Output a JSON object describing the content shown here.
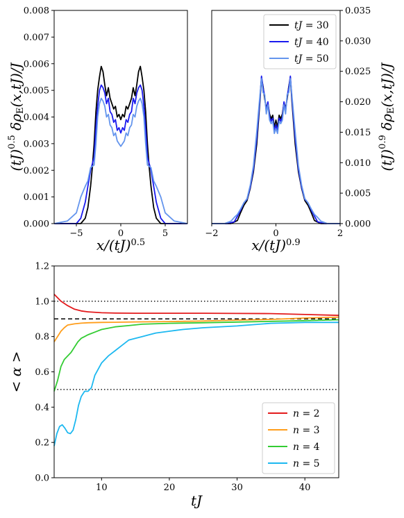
{
  "chart_data": [
    {
      "type": "line",
      "xlabel": "x/(tJ)^0.5",
      "ylabel": "(tJ)^0.5 δρ_E(x,tJ)/J",
      "xlim": [
        -7.5,
        7.5
      ],
      "ylim": [
        0,
        0.008
      ],
      "xticks": [
        "−5",
        "0",
        "5"
      ],
      "xtick_values": [
        -5,
        0,
        5
      ],
      "yticks": [
        "0.000",
        "0.001",
        "0.002",
        "0.003",
        "0.004",
        "0.005",
        "0.006",
        "0.007",
        "0.008"
      ],
      "ytick_values": [
        0,
        0.001,
        0.002,
        0.003,
        0.004,
        0.005,
        0.006,
        0.007,
        0.008
      ],
      "legend": false,
      "series": [
        {
          "color": "#000000",
          "x": [
            -7.5,
            -4.5,
            -4.0,
            -3.7,
            -3.4,
            -3.2,
            -3.0,
            -2.8,
            -2.6,
            -2.4,
            -2.2,
            -2.0,
            -1.8,
            -1.6,
            -1.4,
            -1.2,
            -1.0,
            -0.8,
            -0.6,
            -0.4,
            -0.2,
            0,
            0.2,
            0.4,
            0.6,
            0.8,
            1.0,
            1.2,
            1.4,
            1.6,
            1.8,
            2.0,
            2.2,
            2.4,
            2.6,
            2.8,
            3.0,
            3.2,
            3.4,
            3.7,
            4.0,
            4.5,
            7.5
          ],
          "y": [
            0,
            0,
            0.0002,
            0.0006,
            0.0014,
            0.0021,
            0.003,
            0.0042,
            0.005,
            0.0055,
            0.0059,
            0.0057,
            0.0052,
            0.0048,
            0.0051,
            0.0047,
            0.0045,
            0.0043,
            0.0044,
            0.004,
            0.0041,
            0.0039,
            0.0041,
            0.004,
            0.0044,
            0.0043,
            0.0045,
            0.0047,
            0.0051,
            0.0048,
            0.0052,
            0.0057,
            0.0059,
            0.0055,
            0.005,
            0.0042,
            0.003,
            0.0021,
            0.0014,
            0.0006,
            0.0002,
            0,
            0
          ]
        },
        {
          "color": "#1a1aee",
          "x": [
            -7.5,
            -5.0,
            -4.5,
            -4.0,
            -3.7,
            -3.4,
            -3.0,
            -2.8,
            -2.6,
            -2.4,
            -2.2,
            -2.0,
            -1.8,
            -1.6,
            -1.4,
            -1.2,
            -1.0,
            -0.8,
            -0.6,
            -0.4,
            -0.2,
            0,
            0.2,
            0.4,
            0.6,
            0.8,
            1.0,
            1.2,
            1.4,
            1.6,
            1.8,
            2.0,
            2.2,
            2.4,
            2.6,
            2.8,
            3.0,
            3.4,
            3.7,
            4.0,
            4.5,
            5.0,
            7.5
          ],
          "y": [
            0,
            0,
            0.0002,
            0.0008,
            0.0014,
            0.002,
            0.0025,
            0.0036,
            0.0044,
            0.005,
            0.0052,
            0.0051,
            0.0049,
            0.0045,
            0.0047,
            0.0042,
            0.0041,
            0.0038,
            0.0039,
            0.0035,
            0.0036,
            0.0034,
            0.0036,
            0.0035,
            0.0039,
            0.0038,
            0.0041,
            0.0042,
            0.0047,
            0.0045,
            0.0049,
            0.0051,
            0.0052,
            0.005,
            0.0044,
            0.0036,
            0.0025,
            0.002,
            0.0014,
            0.0008,
            0.0002,
            0,
            0
          ]
        },
        {
          "color": "#6495ed",
          "x": [
            -7.5,
            -6.0,
            -5.0,
            -4.5,
            -4.0,
            -3.7,
            -3.4,
            -3.0,
            -2.8,
            -2.6,
            -2.4,
            -2.2,
            -2.0,
            -1.8,
            -1.6,
            -1.4,
            -1.2,
            -1.0,
            -0.8,
            -0.6,
            -0.4,
            -0.2,
            0,
            0.2,
            0.4,
            0.6,
            0.8,
            1.0,
            1.2,
            1.4,
            1.6,
            1.8,
            2.0,
            2.2,
            2.4,
            2.6,
            2.8,
            3.0,
            3.4,
            3.7,
            4.0,
            4.5,
            5.0,
            6.0,
            7.5
          ],
          "y": [
            0,
            0.0001,
            0.0004,
            0.001,
            0.0014,
            0.0016,
            0.0021,
            0.0022,
            0.003,
            0.004,
            0.0045,
            0.0047,
            0.0046,
            0.0044,
            0.004,
            0.0041,
            0.0037,
            0.0036,
            0.0033,
            0.0034,
            0.0031,
            0.003,
            0.0029,
            0.003,
            0.0031,
            0.0034,
            0.0033,
            0.0036,
            0.0037,
            0.0041,
            0.004,
            0.0044,
            0.0046,
            0.0047,
            0.0045,
            0.004,
            0.003,
            0.0022,
            0.0021,
            0.0016,
            0.0014,
            0.001,
            0.0004,
            0.0001,
            0
          ]
        }
      ]
    },
    {
      "type": "line",
      "xlabel": "x/(tJ)^0.9",
      "ylabel": "(tJ)^0.9 δρ_E(x,tJ)/J",
      "xlim": [
        -2,
        2
      ],
      "ylim": [
        0,
        0.035
      ],
      "xticks": [
        "−2",
        "0",
        "2"
      ],
      "xtick_values": [
        -2,
        0,
        2
      ],
      "yticks": [
        "0.000",
        "0.005",
        "0.010",
        "0.015",
        "0.020",
        "0.025",
        "0.030",
        "0.035"
      ],
      "ytick_values": [
        0,
        0.005,
        0.01,
        0.015,
        0.02,
        0.025,
        0.03,
        0.035
      ],
      "legend": true,
      "legend_position": "top-right",
      "series": [
        {
          "name": "tJ = 30",
          "color": "#000000",
          "x": [
            -2,
            -1.4,
            -1.2,
            -1.1,
            -1.0,
            -0.9,
            -0.8,
            -0.7,
            -0.6,
            -0.5,
            -0.45,
            -0.4,
            -0.35,
            -0.3,
            -0.25,
            -0.2,
            -0.15,
            -0.1,
            -0.05,
            0,
            0.05,
            0.1,
            0.15,
            0.2,
            0.25,
            0.3,
            0.35,
            0.4,
            0.45,
            0.5,
            0.6,
            0.7,
            0.8,
            0.9,
            1.0,
            1.1,
            1.2,
            1.4,
            2
          ],
          "y": [
            0,
            0,
            0.0005,
            0.0018,
            0.003,
            0.0038,
            0.0058,
            0.0085,
            0.013,
            0.02,
            0.024,
            0.0225,
            0.0205,
            0.019,
            0.0198,
            0.018,
            0.0172,
            0.0178,
            0.0158,
            0.017,
            0.0158,
            0.0178,
            0.0172,
            0.018,
            0.0198,
            0.019,
            0.0205,
            0.0225,
            0.024,
            0.02,
            0.013,
            0.0085,
            0.0058,
            0.0038,
            0.003,
            0.0018,
            0.0005,
            0,
            0
          ]
        },
        {
          "name": "tJ = 40",
          "color": "#1a1aee",
          "x": [
            -2,
            -1.5,
            -1.3,
            -1.2,
            -1.1,
            -1.0,
            -0.9,
            -0.8,
            -0.7,
            -0.6,
            -0.5,
            -0.45,
            -0.4,
            -0.35,
            -0.3,
            -0.25,
            -0.2,
            -0.15,
            -0.1,
            -0.05,
            0,
            0.05,
            0.1,
            0.15,
            0.2,
            0.25,
            0.3,
            0.35,
            0.4,
            0.45,
            0.5,
            0.6,
            0.7,
            0.8,
            0.9,
            1.0,
            1.1,
            1.2,
            1.3,
            1.5,
            2
          ],
          "y": [
            0,
            0,
            0.0003,
            0.0012,
            0.0022,
            0.0034,
            0.004,
            0.006,
            0.009,
            0.014,
            0.0205,
            0.0242,
            0.0222,
            0.021,
            0.0184,
            0.02,
            0.0175,
            0.0168,
            0.0173,
            0.0152,
            0.0162,
            0.0152,
            0.0173,
            0.0168,
            0.0175,
            0.02,
            0.0184,
            0.021,
            0.0222,
            0.0242,
            0.0205,
            0.014,
            0.009,
            0.006,
            0.004,
            0.0034,
            0.0022,
            0.0012,
            0.0003,
            0,
            0
          ]
        },
        {
          "name": "tJ = 50",
          "color": "#6495ed",
          "x": [
            -2,
            -1.6,
            -1.4,
            -1.3,
            -1.2,
            -1.1,
            -1.0,
            -0.9,
            -0.8,
            -0.7,
            -0.6,
            -0.5,
            -0.45,
            -0.4,
            -0.35,
            -0.3,
            -0.25,
            -0.2,
            -0.15,
            -0.1,
            -0.05,
            0,
            0.05,
            0.1,
            0.15,
            0.2,
            0.25,
            0.3,
            0.35,
            0.4,
            0.45,
            0.5,
            0.6,
            0.7,
            0.8,
            0.9,
            1.0,
            1.1,
            1.2,
            1.3,
            1.4,
            1.6,
            2
          ],
          "y": [
            0,
            0,
            0.0004,
            0.001,
            0.0015,
            0.0024,
            0.0034,
            0.0041,
            0.0063,
            0.0095,
            0.015,
            0.021,
            0.0238,
            0.0215,
            0.0212,
            0.018,
            0.0195,
            0.017,
            0.0164,
            0.0168,
            0.0148,
            0.0156,
            0.0148,
            0.0168,
            0.0164,
            0.017,
            0.0195,
            0.018,
            0.0212,
            0.0215,
            0.0238,
            0.021,
            0.015,
            0.0095,
            0.0063,
            0.0041,
            0.0034,
            0.0024,
            0.0015,
            0.001,
            0.0004,
            0,
            0
          ]
        }
      ]
    },
    {
      "type": "line",
      "xlabel": "tJ",
      "ylabel": "< α >",
      "xlim": [
        3,
        45
      ],
      "ylim": [
        0,
        1.2
      ],
      "xticks": [
        "10",
        "20",
        "30",
        "40"
      ],
      "xtick_values": [
        10,
        20,
        30,
        40
      ],
      "yticks": [
        "0.0",
        "0.2",
        "0.4",
        "0.6",
        "0.8",
        "1.0",
        "1.2"
      ],
      "ytick_values": [
        0,
        0.2,
        0.4,
        0.6,
        0.8,
        1.0,
        1.2
      ],
      "legend": true,
      "legend_position": "bottom-right",
      "reference_lines": [
        {
          "y": 1.0,
          "style": "dotted"
        },
        {
          "y": 0.9,
          "style": "dashed"
        },
        {
          "y": 0.5,
          "style": "dotted"
        }
      ],
      "series": [
        {
          "name": "n = 2",
          "color": "#e31a1c",
          "x": [
            3,
            4,
            5,
            6,
            7,
            8,
            10,
            12,
            15,
            20,
            25,
            30,
            35,
            40,
            45
          ],
          "y": [
            1.04,
            1.0,
            0.975,
            0.955,
            0.945,
            0.94,
            0.935,
            0.933,
            0.932,
            0.932,
            0.932,
            0.931,
            0.93,
            0.925,
            0.92
          ]
        },
        {
          "name": "n = 3",
          "color": "#ff9d1a",
          "x": [
            3,
            3.5,
            4,
            4.5,
            5,
            6,
            7,
            8,
            10,
            12,
            15,
            20,
            25,
            30,
            35,
            40,
            45
          ],
          "y": [
            0.77,
            0.8,
            0.83,
            0.85,
            0.865,
            0.872,
            0.876,
            0.878,
            0.88,
            0.881,
            0.883,
            0.885,
            0.888,
            0.893,
            0.897,
            0.905,
            0.91
          ]
        },
        {
          "name": "n = 4",
          "color": "#33cc33",
          "x": [
            3,
            3.5,
            4,
            4.5,
            5,
            5.5,
            6,
            6.5,
            7,
            7.5,
            8,
            9,
            10,
            12,
            14,
            16,
            20,
            25,
            30,
            35,
            40,
            45
          ],
          "y": [
            0.49,
            0.55,
            0.63,
            0.67,
            0.69,
            0.71,
            0.74,
            0.77,
            0.79,
            0.8,
            0.81,
            0.825,
            0.84,
            0.855,
            0.862,
            0.87,
            0.875,
            0.878,
            0.882,
            0.886,
            0.89,
            0.895
          ]
        },
        {
          "name": "n = 5",
          "color": "#1cb8f0",
          "x": [
            3,
            3.4,
            3.8,
            4.2,
            4.6,
            5.0,
            5.4,
            5.8,
            6.2,
            6.6,
            7.0,
            7.5,
            8.0,
            8.5,
            9.0,
            10,
            11,
            12,
            13,
            14,
            15,
            16,
            17,
            18,
            20,
            22,
            25,
            30,
            35,
            40,
            45
          ],
          "y": [
            0.18,
            0.25,
            0.29,
            0.3,
            0.28,
            0.255,
            0.25,
            0.27,
            0.33,
            0.41,
            0.46,
            0.49,
            0.49,
            0.51,
            0.58,
            0.65,
            0.69,
            0.72,
            0.75,
            0.78,
            0.79,
            0.8,
            0.81,
            0.82,
            0.83,
            0.84,
            0.85,
            0.86,
            0.875,
            0.88,
            0.88
          ]
        }
      ]
    }
  ]
}
